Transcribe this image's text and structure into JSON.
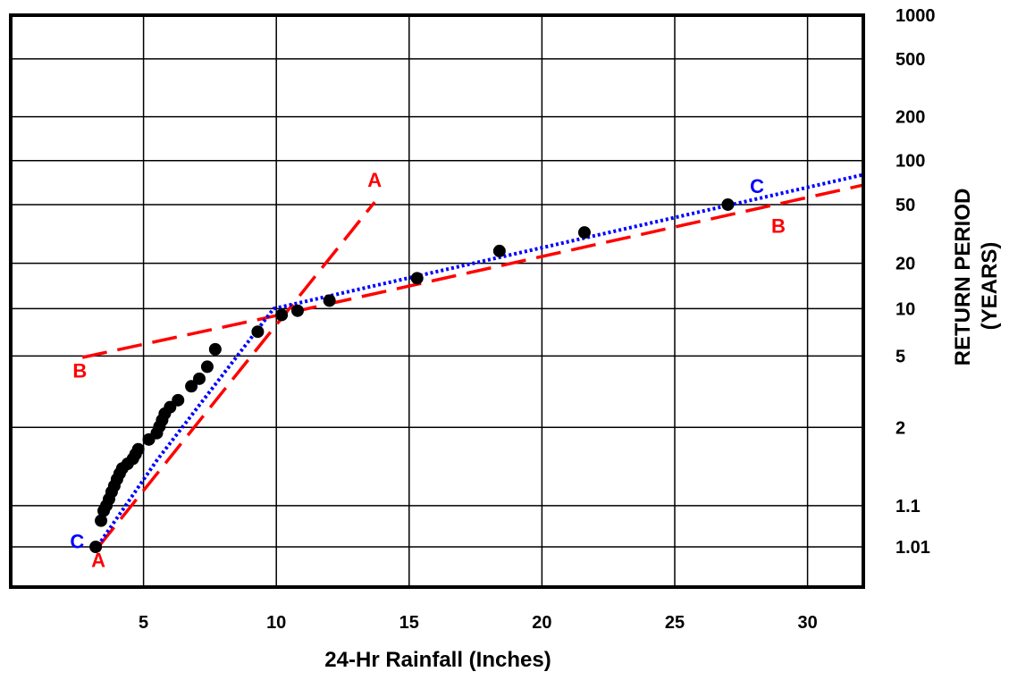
{
  "chart_data": {
    "type": "scatter",
    "title": "",
    "xlabel": "24-Hr Rainfall (Inches)",
    "ylabel_line1": "RETURN PERIOD",
    "ylabel_line2": "(YEARS)",
    "y_scale": "probability",
    "xlim": [
      0,
      32.1
    ],
    "grid": true,
    "x_ticks": [
      5,
      10,
      15,
      20,
      25,
      30
    ],
    "x_tick_labels": [
      "5",
      "10",
      "15",
      "20",
      "25",
      "30"
    ],
    "y_ticks": [
      1.01,
      1.1,
      2,
      5,
      10,
      20,
      50,
      100,
      200,
      500,
      1000
    ],
    "y_tick_labels": [
      "1.01",
      "1.1",
      "2",
      "5",
      "10",
      "20",
      "50",
      "100",
      "200",
      "500",
      "1000"
    ],
    "points": [
      {
        "x": 3.2,
        "y": 1.01
      },
      {
        "x": 3.4,
        "y": 1.05
      },
      {
        "x": 3.5,
        "y": 1.08
      },
      {
        "x": 3.6,
        "y": 1.1
      },
      {
        "x": 3.7,
        "y": 1.13
      },
      {
        "x": 3.8,
        "y": 1.17
      },
      {
        "x": 3.9,
        "y": 1.21
      },
      {
        "x": 4.0,
        "y": 1.26
      },
      {
        "x": 4.1,
        "y": 1.31
      },
      {
        "x": 4.2,
        "y": 1.36
      },
      {
        "x": 4.4,
        "y": 1.41
      },
      {
        "x": 4.6,
        "y": 1.47
      },
      {
        "x": 4.7,
        "y": 1.53
      },
      {
        "x": 4.8,
        "y": 1.6
      },
      {
        "x": 5.2,
        "y": 1.76
      },
      {
        "x": 5.5,
        "y": 1.88
      },
      {
        "x": 5.6,
        "y": 2.02
      },
      {
        "x": 5.7,
        "y": 2.17
      },
      {
        "x": 5.8,
        "y": 2.34
      },
      {
        "x": 6.0,
        "y": 2.53
      },
      {
        "x": 6.3,
        "y": 2.76
      },
      {
        "x": 6.8,
        "y": 3.3
      },
      {
        "x": 7.1,
        "y": 3.65
      },
      {
        "x": 7.4,
        "y": 4.3
      },
      {
        "x": 7.7,
        "y": 5.5
      },
      {
        "x": 9.3,
        "y": 7.1
      },
      {
        "x": 10.2,
        "y": 9.1
      },
      {
        "x": 10.8,
        "y": 9.7
      },
      {
        "x": 12.0,
        "y": 11.3
      },
      {
        "x": 15.3,
        "y": 15.9
      },
      {
        "x": 18.4,
        "y": 24.2
      },
      {
        "x": 21.6,
        "y": 32.3
      },
      {
        "x": 27.0,
        "y": 50.0
      }
    ],
    "series": [
      {
        "name": "A",
        "style": "dashed",
        "color": "#ff0000",
        "labels": [
          {
            "text": "A",
            "x": 3.3,
            "y": 1.0035
          },
          {
            "text": "A",
            "x": 13.7,
            "y": 74
          }
        ],
        "line": [
          {
            "x": 3.3,
            "y": 1.01
          },
          {
            "x": 13.7,
            "y": 52
          }
        ]
      },
      {
        "name": "B",
        "style": "dashed",
        "color": "#ff0000",
        "labels": [
          {
            "text": "B",
            "x": 2.6,
            "y": 4.1
          },
          {
            "text": "B",
            "x": 28.9,
            "y": 36
          }
        ],
        "line": [
          {
            "x": 2.7,
            "y": 4.9
          },
          {
            "x": 9.6,
            "y": 8.7
          },
          {
            "x": 32.1,
            "y": 68
          }
        ]
      },
      {
        "name": "C",
        "style": "dotted",
        "color": "#0000ff",
        "labels": [
          {
            "text": "C",
            "x": 2.5,
            "y": 1.015
          },
          {
            "text": "C",
            "x": 28.1,
            "y": 67
          }
        ],
        "line": [
          {
            "x": 3.4,
            "y": 1.015
          },
          {
            "x": 5.5,
            "y": 1.45
          },
          {
            "x": 9.9,
            "y": 10
          },
          {
            "x": 32.1,
            "y": 80
          }
        ]
      }
    ]
  }
}
